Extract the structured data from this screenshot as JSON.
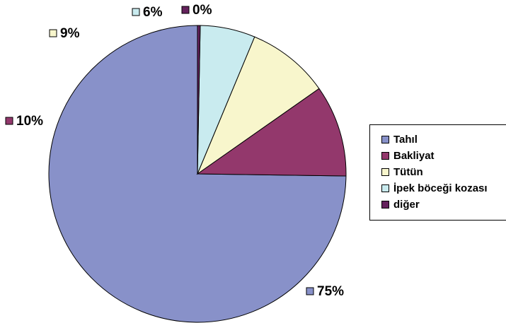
{
  "chart_data": {
    "type": "pie",
    "categories": [
      "Tahıl",
      "Bakliyat",
      "Tütün",
      "İpek böceği kozası",
      "diğer"
    ],
    "values": [
      75,
      10,
      9,
      6,
      0.3
    ],
    "labels": [
      "75%",
      "10%",
      "9%",
      "6%",
      "0%"
    ],
    "colors": [
      "#8891c9",
      "#93386c",
      "#f8f6cc",
      "#c9ebef",
      "#64215c"
    ],
    "legend_position": "right"
  }
}
